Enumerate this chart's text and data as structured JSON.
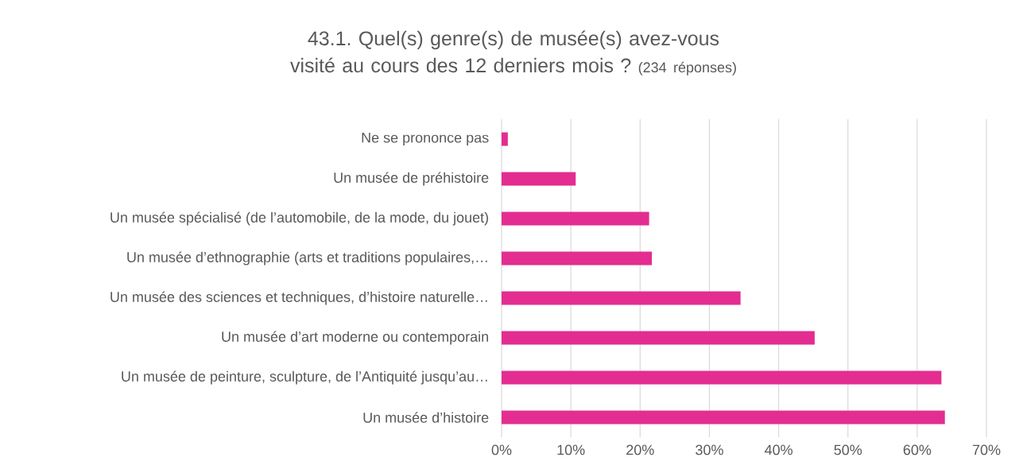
{
  "chart_data": {
    "type": "bar",
    "orientation": "horizontal",
    "title": "43.1. Quel(s) genre(s) de musée(s) avez-vous visité au cours des 12 derniers mois ?",
    "subtitle": "(234 réponses)",
    "categories": [
      "Ne se prononce pas",
      "Un musée de préhistoire",
      "Un musée spécialisé (de l’automobile, de la mode, du jouet)",
      "Un musée d’ethnographie (arts et traditions populaires,…",
      "Un musée des sciences et techniques, d’histoire naturelle…",
      "Un musée d’art moderne ou contemporain",
      "Un musée de peinture, sculpture, de l’Antiquité jusqu’au…",
      "Un musée d’histoire"
    ],
    "values": [
      0.9,
      10.7,
      21.3,
      21.7,
      34.5,
      45.2,
      63.5,
      64.0
    ],
    "color": "#e32d91",
    "xlim": [
      0,
      70
    ],
    "xticks": [
      {
        "value": 0,
        "label": "0%"
      },
      {
        "value": 10,
        "label": "10%"
      },
      {
        "value": 20,
        "label": "20%"
      },
      {
        "value": 30,
        "label": "30%"
      },
      {
        "value": 40,
        "label": "40%"
      },
      {
        "value": 50,
        "label": "50%"
      },
      {
        "value": 60,
        "label": "60%"
      },
      {
        "value": 70,
        "label": "70%"
      }
    ],
    "grid": "x"
  }
}
